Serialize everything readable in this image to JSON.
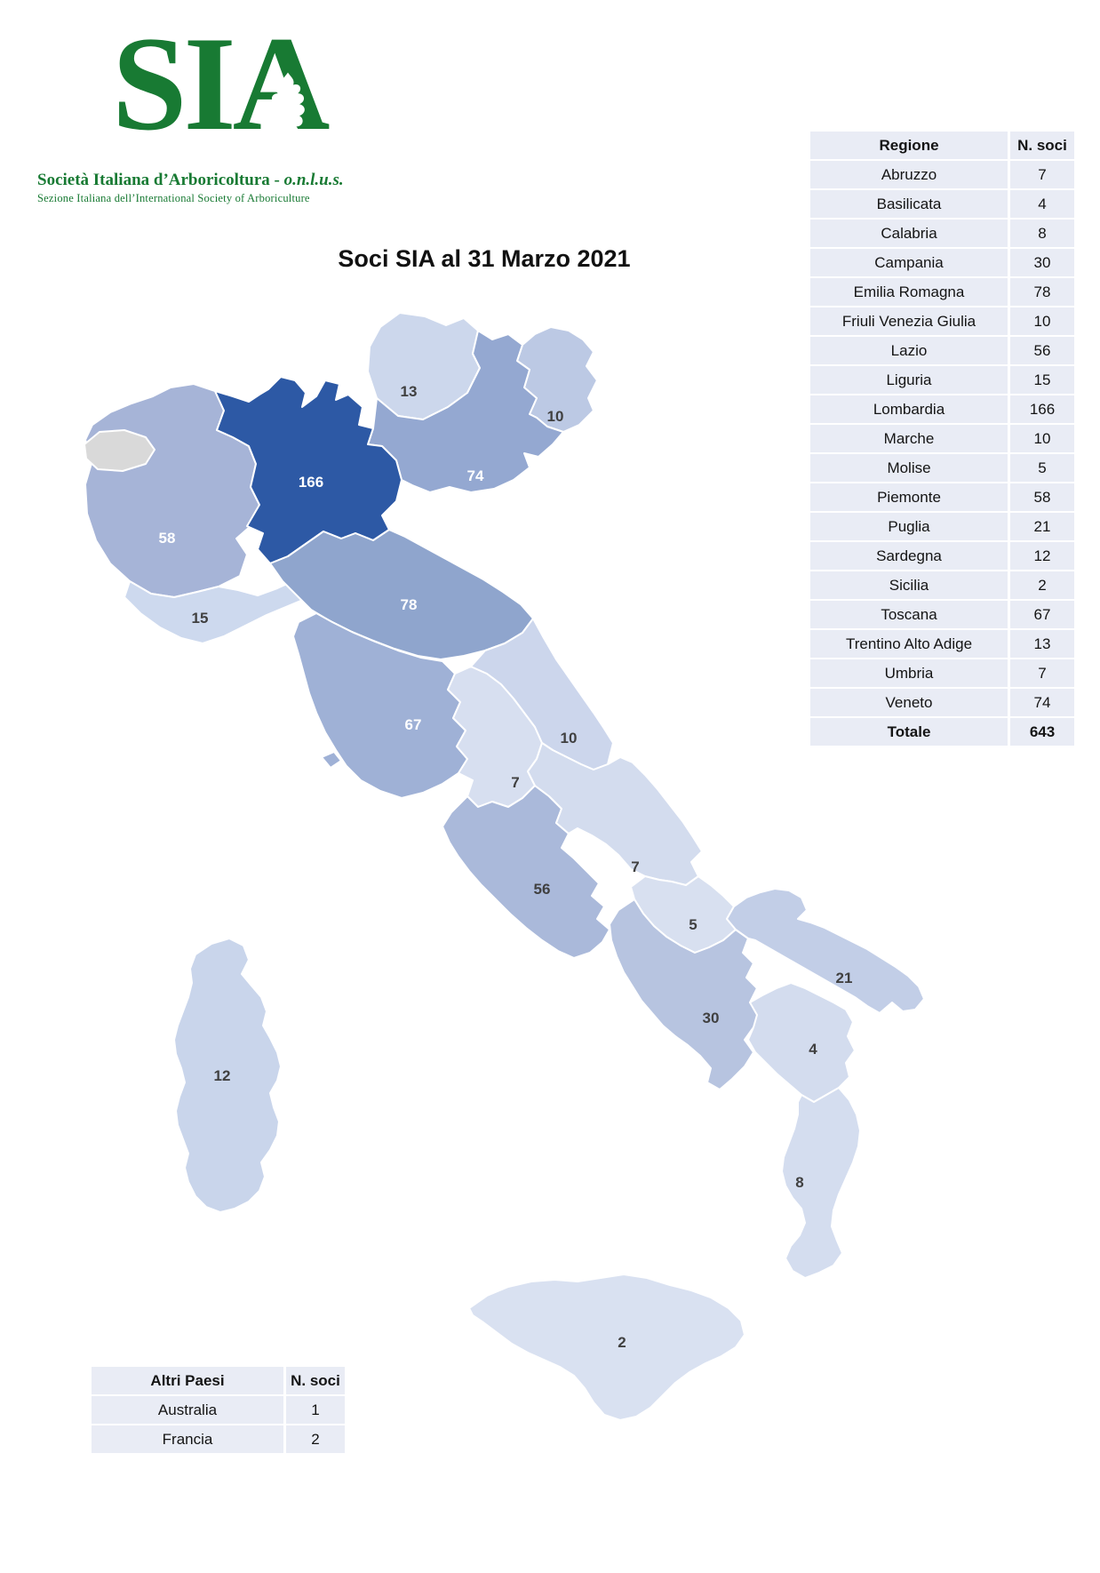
{
  "logo": {
    "acronym": "SIA",
    "color": "#187a33",
    "name_main": "Società Italiana d’Arboricoltura - ",
    "name_suffix": "o.n.l.u.s.",
    "subtitle": "Sezione Italiana dell’International Society of Arboriculture",
    "leaf_icon": "oak-leaf"
  },
  "title": "Soci SIA al 31 Marzo 2021",
  "regions_table": {
    "cell_bg": "#e9ecf5",
    "headers": [
      "Regione",
      "N. soci"
    ],
    "rows": [
      [
        "Abruzzo",
        "7"
      ],
      [
        "Basilicata",
        "4"
      ],
      [
        "Calabria",
        "8"
      ],
      [
        "Campania",
        "30"
      ],
      [
        "Emilia Romagna",
        "78"
      ],
      [
        "Friuli Venezia Giulia",
        "10"
      ],
      [
        "Lazio",
        "56"
      ],
      [
        "Liguria",
        "15"
      ],
      [
        "Lombardia",
        "166"
      ],
      [
        "Marche",
        "10"
      ],
      [
        "Molise",
        "5"
      ],
      [
        "Piemonte",
        "58"
      ],
      [
        "Puglia",
        "21"
      ],
      [
        "Sardegna",
        "12"
      ],
      [
        "Sicilia",
        "2"
      ],
      [
        "Toscana",
        "67"
      ],
      [
        "Trentino Alto Adige",
        "13"
      ],
      [
        "Umbria",
        "7"
      ],
      [
        "Veneto",
        "74"
      ]
    ],
    "total": [
      "Totale",
      "643"
    ]
  },
  "others_table": {
    "cell_bg": "#e9ecf5",
    "headers": [
      "Altri Paesi",
      "N. soci"
    ],
    "rows": [
      [
        "Australia",
        "1"
      ],
      [
        "Francia",
        "2"
      ]
    ]
  },
  "chart_data": {
    "type": "choropleth_map",
    "title": "Soci SIA al 31 Marzo 2021",
    "area": "Italy — regions",
    "unit": "N. soci (members)",
    "total": 643,
    "regions": [
      {
        "id": "piemonte",
        "name": "Piemonte",
        "value": 58,
        "fill": "#a6b4d7",
        "label_color": "#ffffff"
      },
      {
        "id": "valle_daosta",
        "name": "Valle d’Aosta",
        "value": null,
        "fill": "#d9d9d9",
        "label_color": null
      },
      {
        "id": "trentino",
        "name": "Trentino Alto Adige",
        "value": 13,
        "fill": "#ccd7ec",
        "label_color": "#404040"
      },
      {
        "id": "friuli",
        "name": "Friuli Venezia Giulia",
        "value": 10,
        "fill": "#bcc9e4",
        "label_color": "#404040"
      },
      {
        "id": "veneto",
        "name": "Veneto",
        "value": 74,
        "fill": "#94a8d1",
        "label_color": "#ffffff"
      },
      {
        "id": "lombardia",
        "name": "Lombardia",
        "value": 166,
        "fill": "#2d59a5",
        "label_color": "#ffffff"
      },
      {
        "id": "liguria",
        "name": "Liguria",
        "value": 15,
        "fill": "#cdd9ee",
        "label_color": "#404040"
      },
      {
        "id": "emilia",
        "name": "Emilia Romagna",
        "value": 78,
        "fill": "#8fa5cd",
        "label_color": "#ffffff"
      },
      {
        "id": "toscana",
        "name": "Toscana",
        "value": 67,
        "fill": "#9fb1d6",
        "label_color": "#ffffff"
      },
      {
        "id": "umbria",
        "name": "Umbria",
        "value": 7,
        "fill": "#d7dff0",
        "label_color": "#404040"
      },
      {
        "id": "marche",
        "name": "Marche",
        "value": 10,
        "fill": "#ccd6ec",
        "label_color": "#404040"
      },
      {
        "id": "lazio",
        "name": "Lazio",
        "value": 56,
        "fill": "#aab9da",
        "label_color": "#404040"
      },
      {
        "id": "abruzzo",
        "name": "Abruzzo",
        "value": 7,
        "fill": "#d3dcee",
        "label_color": "#404040"
      },
      {
        "id": "molise",
        "name": "Molise",
        "value": 5,
        "fill": "#d8e0f0",
        "label_color": "#404040"
      },
      {
        "id": "campania",
        "name": "Campania",
        "value": 30,
        "fill": "#b7c4e0",
        "label_color": "#404040"
      },
      {
        "id": "puglia",
        "name": "Puglia",
        "value": 21,
        "fill": "#c2cee7",
        "label_color": "#404040"
      },
      {
        "id": "basilicata",
        "name": "Basilicata",
        "value": 4,
        "fill": "#d3dcee",
        "label_color": "#404040"
      },
      {
        "id": "calabria",
        "name": "Calabria",
        "value": 8,
        "fill": "#d4ddef",
        "label_color": "#404040"
      },
      {
        "id": "sicilia",
        "name": "Sicilia",
        "value": 2,
        "fill": "#d9e1f1",
        "label_color": "#404040"
      },
      {
        "id": "sardegna",
        "name": "Sardegna",
        "value": 12,
        "fill": "#c9d5eb",
        "label_color": "#404040"
      }
    ]
  }
}
